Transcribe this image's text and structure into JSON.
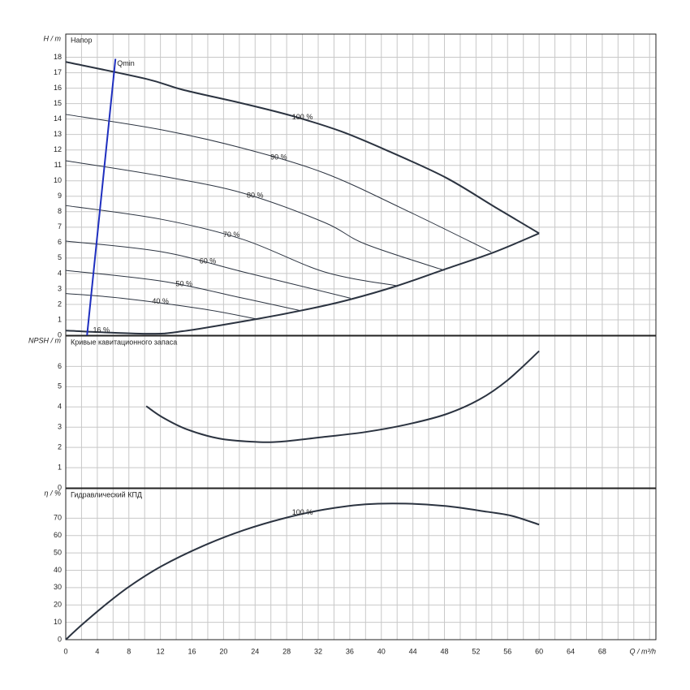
{
  "chart_data": [
    {
      "type": "line",
      "y_label": "H / m",
      "title": "Напор",
      "ylim": [
        0,
        19.5
      ],
      "yticks": [
        0,
        1,
        2,
        3,
        4,
        5,
        6,
        7,
        8,
        9,
        10,
        11,
        12,
        13,
        14,
        15,
        16,
        17,
        18
      ],
      "series": [
        {
          "name": "100 %",
          "color": "#2b3340",
          "x": [
            0,
            10.2,
            14.8,
            22.5,
            28.7,
            34.9,
            41,
            48.2,
            54.4,
            60
          ],
          "values": [
            17.7,
            16.6,
            15.9,
            15.0,
            14.2,
            13.2,
            11.9,
            10.2,
            8.3,
            6.6
          ]
        },
        {
          "name": "90 %",
          "color": "#2b3340",
          "x": [
            0,
            12.2,
            22.5,
            32.8,
            43.1,
            53.9
          ],
          "values": [
            14.3,
            13.3,
            12.1,
            10.5,
            8.1,
            5.4
          ]
        },
        {
          "name": "80 %",
          "color": "#2b3340",
          "x": [
            0,
            12.2,
            22.5,
            32.8,
            38,
            48
          ],
          "values": [
            11.3,
            10.3,
            9.2,
            7.3,
            5.9,
            4.2
          ]
        },
        {
          "name": "70 %",
          "color": "#2b3340",
          "x": [
            0,
            12.2,
            22.5,
            32.8,
            42
          ],
          "values": [
            8.4,
            7.5,
            6.2,
            4.1,
            3.2
          ]
        },
        {
          "name": "60 %",
          "color": "#2b3340",
          "x": [
            0,
            12.2,
            22.5,
            36.1
          ],
          "values": [
            6.1,
            5.4,
            4.1,
            2.4
          ]
        },
        {
          "name": "50 %",
          "color": "#2b3340",
          "x": [
            0,
            12.2,
            22.5,
            29.7
          ],
          "values": [
            4.2,
            3.5,
            2.4,
            1.6
          ]
        },
        {
          "name": "40 %",
          "color": "#2b3340",
          "x": [
            0,
            7.1,
            17.4,
            24.2
          ],
          "values": [
            2.7,
            2.4,
            1.7,
            1.05
          ]
        },
        {
          "name": "16 %",
          "color": "#2b3340",
          "x": [
            0,
            10.2,
            14.8,
            24.2,
            30.8,
            35.9,
            42,
            48.2,
            54.4,
            60
          ],
          "values": [
            0.3,
            0.1,
            0.26,
            1.05,
            1.7,
            2.3,
            3.2,
            4.3,
            5.4,
            6.6
          ]
        },
        {
          "name": "Qmin",
          "color": "#1f2fbf",
          "x": [
            2.7,
            6.3
          ],
          "values": [
            0,
            17.9
          ]
        }
      ]
    },
    {
      "type": "line",
      "y_label": "NPSH / m",
      "title": "Кривые кавитационного запаса",
      "ylim": [
        0,
        7.5
      ],
      "yticks": [
        0,
        1,
        2,
        3,
        4,
        5,
        6
      ],
      "series": [
        {
          "color": "#2b3340",
          "x": [
            10.2,
            12.2,
            15.3,
            19.4,
            23.6,
            27.2,
            32.8,
            38,
            43.1,
            48.2,
            52.4,
            56,
            60
          ],
          "values": [
            4.04,
            3.5,
            2.9,
            2.44,
            2.28,
            2.28,
            2.52,
            2.76,
            3.12,
            3.64,
            4.36,
            5.32,
            6.76
          ]
        }
      ]
    },
    {
      "type": "line",
      "y_label": "η / %",
      "title": "Гидравлический КПД",
      "ylim": [
        0,
        87
      ],
      "yticks": [
        0,
        10,
        20,
        30,
        40,
        50,
        60,
        70
      ],
      "series": [
        {
          "name": "100 %",
          "color": "#2b3340",
          "x": [
            0,
            2,
            5,
            8.1,
            12.2,
            17.4,
            22.5,
            27.7,
            32.8,
            38,
            43.1,
            48.2,
            53.4,
            56.5,
            60
          ],
          "values": [
            0,
            8.4,
            20,
            30.8,
            42.5,
            54,
            63,
            70,
            75,
            78,
            78.4,
            77,
            73.7,
            71.4,
            66.3
          ]
        }
      ],
      "xlim": [
        0,
        74.8
      ],
      "xticks": [
        0,
        4,
        8,
        12,
        16,
        20,
        24,
        28,
        32,
        36,
        40,
        44,
        48,
        52,
        56,
        60,
        64,
        68
      ],
      "xgrid": [
        0,
        2,
        4,
        6,
        8,
        10,
        12,
        14,
        16,
        18,
        20,
        22,
        24,
        26,
        28,
        30,
        32,
        34,
        36,
        38,
        40,
        42,
        44,
        46,
        48,
        50,
        52,
        54,
        56,
        58,
        60,
        62,
        64,
        66,
        68,
        70,
        72,
        74
      ],
      "x_label": "Q / m³/h"
    }
  ]
}
